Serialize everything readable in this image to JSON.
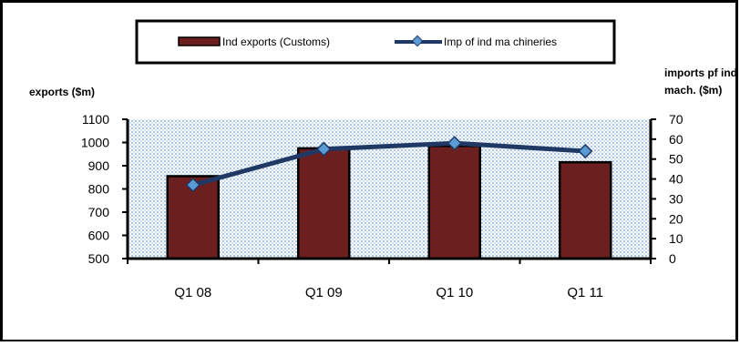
{
  "chart_data": {
    "type": "bar",
    "categories": [
      "Q1 08",
      "Q1 09",
      "Q1 10",
      "Q1 11"
    ],
    "series": [
      {
        "name": "Ind exports (Customs)",
        "type": "bar",
        "axis": "left",
        "values": [
          855,
          975,
          985,
          915
        ],
        "color": "#6b1f1f"
      },
      {
        "name": "Imp of ind ma chineries",
        "type": "line",
        "axis": "right",
        "values": [
          37,
          55,
          58,
          54
        ],
        "color": "#1f3864",
        "marker_color": "#5b9bd5"
      }
    ],
    "ylabel": "exports ($m)",
    "y2label_line1": "imports pf ind",
    "y2label_line2": "mach. ($m)",
    "ylim": [
      500,
      1100
    ],
    "y_ticks": [
      "500",
      "600",
      "700",
      "800",
      "900",
      "1000",
      "1100"
    ],
    "y2lim": [
      0,
      70
    ],
    "y2_ticks": [
      "0",
      "10",
      "20",
      "30",
      "40",
      "50",
      "60",
      "70"
    ],
    "legend_position": "top",
    "plot_background": "dotted light blue"
  }
}
